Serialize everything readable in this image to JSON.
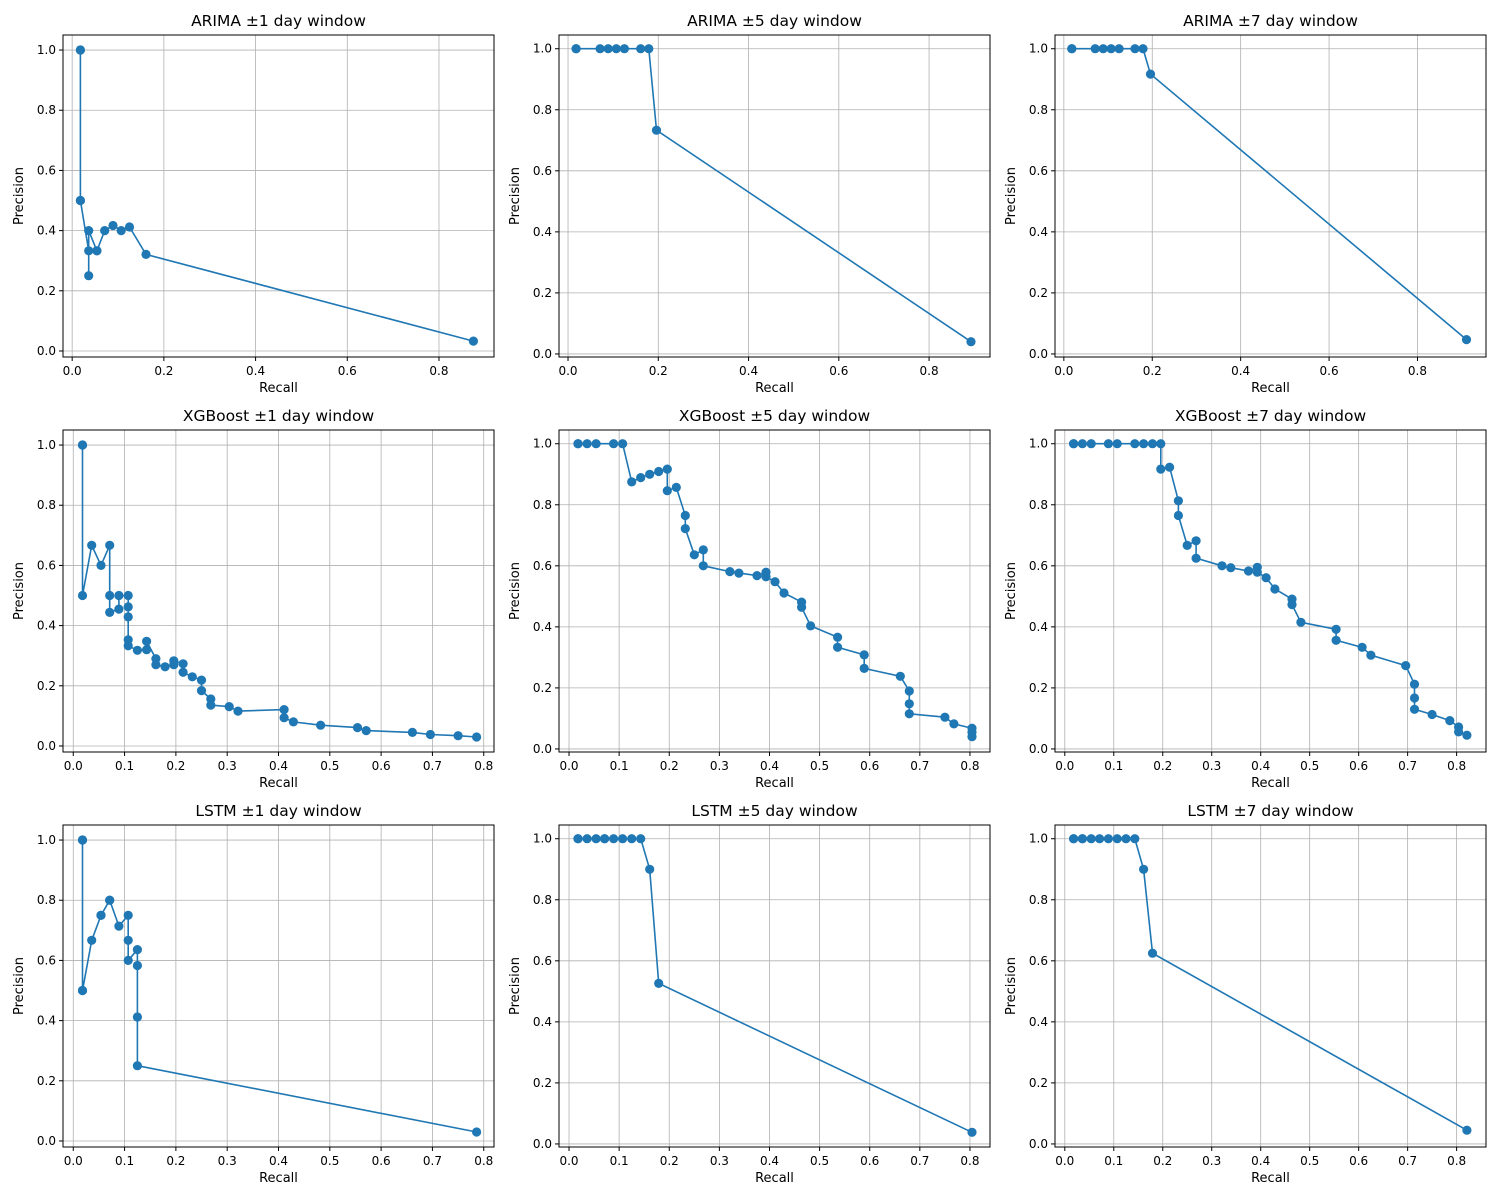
{
  "chart_data": [
    {
      "type": "line",
      "title": "ARIMA ±1 day window",
      "xlabel": "Recall",
      "ylabel": "Precision",
      "xlim": [
        -0.02,
        0.92
      ],
      "ylim": [
        -0.02,
        1.05
      ],
      "xticks": [
        0.0,
        0.2,
        0.4,
        0.6,
        0.8
      ],
      "yticks": [
        0.0,
        0.2,
        0.4,
        0.6,
        0.8,
        1.0
      ],
      "grid": true,
      "series": [
        {
          "x": [
            0.018,
            0.018,
            0.018,
            0.018,
            0.036,
            0.036,
            0.036,
            0.054,
            0.054,
            0.071,
            0.089,
            0.107,
            0.125,
            0.161,
            0.875
          ],
          "y": [
            1.0,
            1.0,
            0.5,
            0.5,
            0.333,
            0.25,
            0.4,
            0.333,
            0.333,
            0.4,
            0.417,
            0.4,
            0.412,
            0.321,
            0.033
          ]
        }
      ]
    },
    {
      "type": "line",
      "title": "ARIMA ±5 day window",
      "xlabel": "Recall",
      "ylabel": "Precision",
      "xlim": [
        -0.02,
        0.935
      ],
      "ylim": [
        -0.01,
        1.045
      ],
      "xticks": [
        0.0,
        0.2,
        0.4,
        0.6,
        0.8
      ],
      "yticks": [
        0.0,
        0.2,
        0.4,
        0.6,
        0.8,
        1.0
      ],
      "grid": true,
      "series": [
        {
          "x": [
            0.018,
            0.018,
            0.071,
            0.089,
            0.107,
            0.125,
            0.161,
            0.179,
            0.196,
            0.893
          ],
          "y": [
            1.0,
            1.0,
            1.0,
            1.0,
            1.0,
            1.0,
            1.0,
            1.0,
            0.733,
            0.04
          ]
        }
      ]
    },
    {
      "type": "line",
      "title": "ARIMA ±7 day window",
      "xlabel": "Recall",
      "ylabel": "Precision",
      "xlim": [
        -0.02,
        0.955
      ],
      "ylim": [
        -0.01,
        1.045
      ],
      "xticks": [
        0.0,
        0.2,
        0.4,
        0.6,
        0.8
      ],
      "yticks": [
        0.0,
        0.2,
        0.4,
        0.6,
        0.8,
        1.0
      ],
      "grid": true,
      "series": [
        {
          "x": [
            0.018,
            0.018,
            0.071,
            0.089,
            0.107,
            0.125,
            0.161,
            0.179,
            0.196,
            0.911
          ],
          "y": [
            1.0,
            1.0,
            1.0,
            1.0,
            1.0,
            1.0,
            1.0,
            1.0,
            0.917,
            0.047
          ]
        }
      ]
    },
    {
      "type": "line",
      "title": "XGBoost ±1 day window",
      "xlabel": "Recall",
      "ylabel": "Precision",
      "xlim": [
        -0.02,
        0.82
      ],
      "ylim": [
        -0.02,
        1.05
      ],
      "xticks": [
        0.0,
        0.1,
        0.2,
        0.3,
        0.4,
        0.5,
        0.6,
        0.7,
        0.8
      ],
      "yticks": [
        0.0,
        0.2,
        0.4,
        0.6,
        0.8,
        1.0
      ],
      "grid": true,
      "series": [
        {
          "x": [
            0.018,
            0.018,
            0.018,
            0.036,
            0.054,
            0.071,
            0.071,
            0.071,
            0.089,
            0.089,
            0.107,
            0.107,
            0.107,
            0.107,
            0.107,
            0.125,
            0.143,
            0.143,
            0.161,
            0.161,
            0.179,
            0.196,
            0.196,
            0.214,
            0.214,
            0.232,
            0.25,
            0.25,
            0.268,
            0.268,
            0.304,
            0.321,
            0.411,
            0.411,
            0.429,
            0.482,
            0.554,
            0.571,
            0.661,
            0.696,
            0.75,
            0.786
          ],
          "y": [
            1.0,
            1.0,
            0.5,
            0.667,
            0.6,
            0.667,
            0.5,
            0.444,
            0.455,
            0.5,
            0.5,
            0.462,
            0.429,
            0.353,
            0.333,
            0.318,
            0.32,
            0.348,
            0.29,
            0.27,
            0.263,
            0.27,
            0.283,
            0.273,
            0.245,
            0.23,
            0.219,
            0.184,
            0.156,
            0.136,
            0.131,
            0.116,
            0.121,
            0.094,
            0.08,
            0.069,
            0.061,
            0.051,
            0.045,
            0.038,
            0.034,
            0.03
          ]
        }
      ]
    },
    {
      "type": "line",
      "title": "XGBoost ±5 day window",
      "xlabel": "Recall",
      "ylabel": "Precision",
      "xlim": [
        -0.02,
        0.84
      ],
      "ylim": [
        -0.01,
        1.045
      ],
      "xticks": [
        0.0,
        0.1,
        0.2,
        0.3,
        0.4,
        0.5,
        0.6,
        0.7,
        0.8
      ],
      "yticks": [
        0.0,
        0.2,
        0.4,
        0.6,
        0.8,
        1.0
      ],
      "grid": true,
      "series": [
        {
          "x": [
            0.018,
            0.018,
            0.036,
            0.054,
            0.089,
            0.107,
            0.125,
            0.143,
            0.161,
            0.179,
            0.196,
            0.196,
            0.214,
            0.232,
            0.232,
            0.25,
            0.268,
            0.268,
            0.321,
            0.339,
            0.375,
            0.393,
            0.393,
            0.411,
            0.429,
            0.464,
            0.464,
            0.482,
            0.536,
            0.536,
            0.589,
            0.589,
            0.661,
            0.679,
            0.679,
            0.679,
            0.75,
            0.768,
            0.804,
            0.804,
            0.804
          ],
          "y": [
            1.0,
            1.0,
            1.0,
            1.0,
            1.0,
            1.0,
            0.875,
            0.889,
            0.9,
            0.909,
            0.917,
            0.846,
            0.857,
            0.765,
            0.722,
            0.636,
            0.652,
            0.6,
            0.581,
            0.576,
            0.568,
            0.579,
            0.564,
            0.548,
            0.511,
            0.481,
            0.464,
            0.403,
            0.366,
            0.333,
            0.308,
            0.264,
            0.238,
            0.19,
            0.148,
            0.115,
            0.104,
            0.082,
            0.068,
            0.055,
            0.04
          ]
        }
      ]
    },
    {
      "type": "line",
      "title": "XGBoost ±7 day window",
      "xlabel": "Recall",
      "ylabel": "Precision",
      "xlim": [
        -0.02,
        0.86
      ],
      "ylim": [
        -0.01,
        1.045
      ],
      "xticks": [
        0.0,
        0.1,
        0.2,
        0.3,
        0.4,
        0.5,
        0.6,
        0.7,
        0.8
      ],
      "yticks": [
        0.0,
        0.2,
        0.4,
        0.6,
        0.8,
        1.0
      ],
      "grid": true,
      "series": [
        {
          "x": [
            0.018,
            0.018,
            0.036,
            0.054,
            0.089,
            0.107,
            0.143,
            0.161,
            0.179,
            0.196,
            0.196,
            0.214,
            0.232,
            0.232,
            0.25,
            0.268,
            0.268,
            0.321,
            0.339,
            0.375,
            0.393,
            0.393,
            0.411,
            0.429,
            0.464,
            0.464,
            0.482,
            0.554,
            0.554,
            0.607,
            0.625,
            0.696,
            0.714,
            0.714,
            0.714,
            0.75,
            0.786,
            0.804,
            0.804,
            0.821
          ],
          "y": [
            1.0,
            1.0,
            1.0,
            1.0,
            1.0,
            1.0,
            1.0,
            1.0,
            1.0,
            1.0,
            0.917,
            0.923,
            0.813,
            0.765,
            0.667,
            0.682,
            0.625,
            0.6,
            0.594,
            0.583,
            0.595,
            0.579,
            0.561,
            0.524,
            0.491,
            0.473,
            0.415,
            0.392,
            0.356,
            0.333,
            0.307,
            0.273,
            0.212,
            0.167,
            0.13,
            0.113,
            0.093,
            0.072,
            0.056,
            0.045
          ]
        }
      ]
    },
    {
      "type": "line",
      "title": "LSTM ±1 day window",
      "xlabel": "Recall",
      "ylabel": "Precision",
      "xlim": [
        -0.02,
        0.82
      ],
      "ylim": [
        -0.02,
        1.05
      ],
      "xticks": [
        0.0,
        0.1,
        0.2,
        0.3,
        0.4,
        0.5,
        0.6,
        0.7,
        0.8
      ],
      "yticks": [
        0.0,
        0.2,
        0.4,
        0.6,
        0.8,
        1.0
      ],
      "grid": true,
      "series": [
        {
          "x": [
            0.018,
            0.018,
            0.018,
            0.018,
            0.036,
            0.054,
            0.054,
            0.071,
            0.071,
            0.089,
            0.107,
            0.107,
            0.107,
            0.125,
            0.125,
            0.125,
            0.125,
            0.786
          ],
          "y": [
            1.0,
            1.0,
            0.5,
            0.5,
            0.667,
            0.75,
            0.75,
            0.8,
            0.8,
            0.714,
            0.75,
            0.667,
            0.6,
            0.636,
            0.583,
            0.412,
            0.25,
            0.03
          ]
        }
      ]
    },
    {
      "type": "line",
      "title": "LSTM ±5 day window",
      "xlabel": "Recall",
      "ylabel": "Precision",
      "xlim": [
        -0.02,
        0.84
      ],
      "ylim": [
        -0.01,
        1.045
      ],
      "xticks": [
        0.0,
        0.1,
        0.2,
        0.3,
        0.4,
        0.5,
        0.6,
        0.7,
        0.8
      ],
      "yticks": [
        0.0,
        0.2,
        0.4,
        0.6,
        0.8,
        1.0
      ],
      "grid": true,
      "series": [
        {
          "x": [
            0.018,
            0.018,
            0.036,
            0.054,
            0.071,
            0.071,
            0.089,
            0.107,
            0.125,
            0.143,
            0.161,
            0.179,
            0.804
          ],
          "y": [
            1.0,
            1.0,
            1.0,
            1.0,
            1.0,
            1.0,
            1.0,
            1.0,
            1.0,
            1.0,
            0.9,
            0.526,
            0.038
          ]
        }
      ]
    },
    {
      "type": "line",
      "title": "LSTM ±7 day window",
      "xlabel": "Recall",
      "ylabel": "Precision",
      "xlim": [
        -0.02,
        0.86
      ],
      "ylim": [
        -0.01,
        1.045
      ],
      "xticks": [
        0.0,
        0.1,
        0.2,
        0.3,
        0.4,
        0.5,
        0.6,
        0.7,
        0.8
      ],
      "yticks": [
        0.0,
        0.2,
        0.4,
        0.6,
        0.8,
        1.0
      ],
      "grid": true,
      "series": [
        {
          "x": [
            0.018,
            0.018,
            0.036,
            0.036,
            0.054,
            0.071,
            0.089,
            0.107,
            0.125,
            0.143,
            0.161,
            0.179,
            0.821
          ],
          "y": [
            1.0,
            1.0,
            1.0,
            1.0,
            1.0,
            1.0,
            1.0,
            1.0,
            1.0,
            1.0,
            0.9,
            0.625,
            0.045
          ]
        }
      ]
    }
  ],
  "colors": {
    "series": "#1f77b4",
    "grid": "#b0b0b0",
    "axis": "#000000"
  }
}
